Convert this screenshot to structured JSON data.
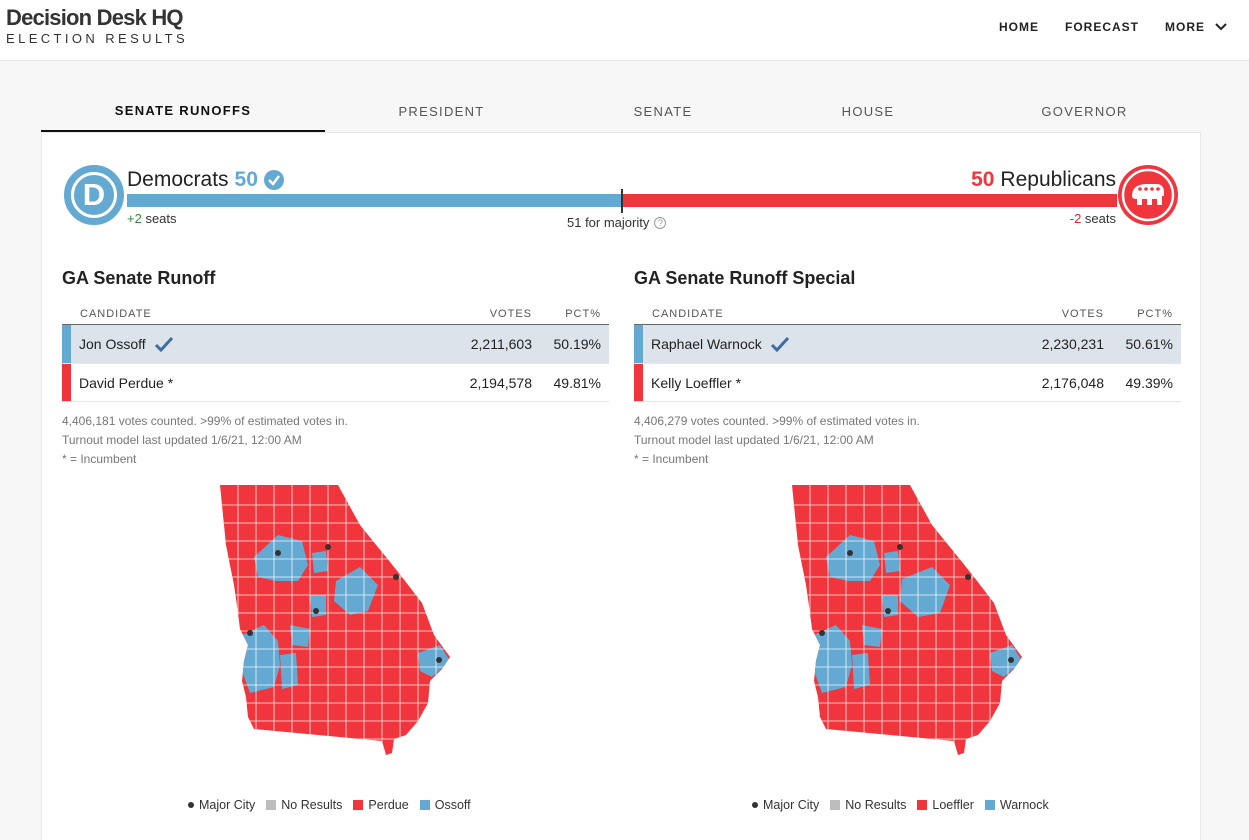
{
  "brand": {
    "title": "Decision Desk HQ",
    "subtitle": "ELECTION RESULTS"
  },
  "nav": {
    "items": [
      "HOME",
      "FORECAST",
      "MORE"
    ]
  },
  "tabs": [
    "SENATE RUNOFFS",
    "PRESIDENT",
    "SENATE",
    "HOUSE",
    "GOVERNOR"
  ],
  "balance": {
    "dem_label": "Democrats",
    "dem_seats": "50",
    "dem_change": "+2",
    "dem_change_label": "seats",
    "rep_label": "Republicans",
    "rep_seats": "50",
    "rep_change": "-2",
    "rep_change_label": "seats",
    "majority": "51 for majority",
    "dem_icon_letter": "D",
    "colors": {
      "dem": "#64a9d2",
      "rep": "#f0353c"
    }
  },
  "races": [
    {
      "title": "GA Senate Runoff",
      "headers": {
        "candidate": "CANDIDATE",
        "votes": "VOTES",
        "pct": "PCT%"
      },
      "rows": [
        {
          "name": "Jon Ossoff",
          "votes": "2,211,603",
          "pct": "50.19%",
          "party": "dem",
          "winner": true
        },
        {
          "name": "David Perdue *",
          "votes": "2,194,578",
          "pct": "49.81%",
          "party": "rep",
          "winner": false
        }
      ],
      "notes": [
        "4,406,181 votes counted. >99% of estimated votes in.",
        "Turnout model last updated 1/6/21, 12:00 AM",
        "* = Incumbent"
      ],
      "legend": [
        "Major City",
        "No Results",
        "Perdue",
        "Ossoff"
      ]
    },
    {
      "title": "GA Senate Runoff Special",
      "headers": {
        "candidate": "CANDIDATE",
        "votes": "VOTES",
        "pct": "PCT%"
      },
      "rows": [
        {
          "name": "Raphael Warnock",
          "votes": "2,230,231",
          "pct": "50.61%",
          "party": "dem",
          "winner": true
        },
        {
          "name": "Kelly Loeffler *",
          "votes": "2,176,048",
          "pct": "49.39%",
          "party": "rep",
          "winner": false
        }
      ],
      "notes": [
        "4,406,279 votes counted. >99% of estimated votes in.",
        "Turnout model last updated 1/6/21, 12:00 AM",
        "* = Incumbent"
      ],
      "legend": [
        "Major City",
        "No Results",
        "Loeffler",
        "Warnock"
      ]
    }
  ],
  "legend_colors": {
    "city": "#333333",
    "no_results": "#bdbdbd",
    "rep": "#f0353c",
    "dem": "#64a9d2"
  }
}
